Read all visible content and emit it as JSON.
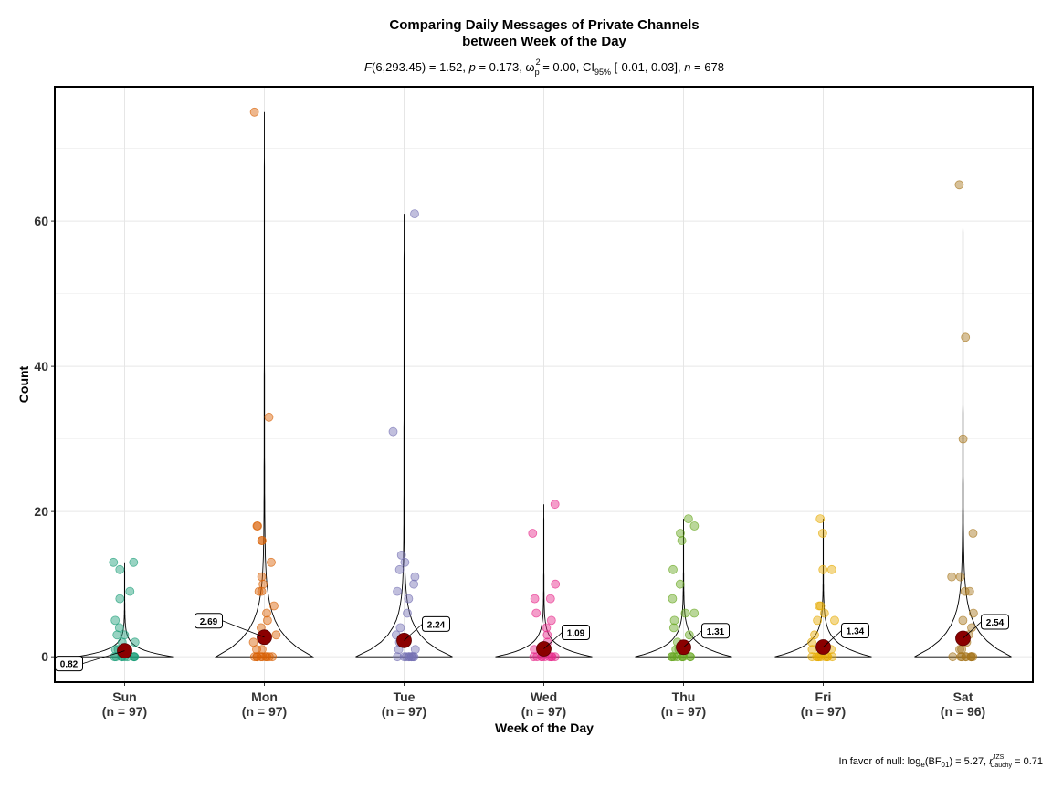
{
  "chart_data": {
    "type": "violin",
    "title_line1": "Comparing Daily Messages of Private Channels",
    "title_line2": "between Week of the Day",
    "subtitle": {
      "f_sym": "F",
      "f_text": "(6,293.45) = 1.52, ",
      "p_sym": "p",
      "p_text": " = 0.173, ω",
      "omega_sup": "2",
      "omega_sub": "p",
      "omega_text": " = 0.00, CI",
      "ci_sub": "95%",
      "ci_text": " [-0.01, 0.03], ",
      "n_sym": "n",
      "n_text": " = 678"
    },
    "xlabel": "Week of the Day",
    "ylabel": "Count",
    "ylim": [
      -3.5,
      78.5
    ],
    "yticks": [
      0,
      20,
      40,
      60
    ],
    "grid": true,
    "categories": [
      "Sun",
      "Mon",
      "Tue",
      "Wed",
      "Thu",
      "Fri",
      "Sat"
    ],
    "n_labels": [
      "(n = 97)",
      "(n = 97)",
      "(n = 97)",
      "(n = 97)",
      "(n = 97)",
      "(n = 97)",
      "(n = 96)"
    ],
    "colors": [
      "#1B9E77",
      "#D95F02",
      "#7570B3",
      "#E7298A",
      "#66A61E",
      "#E6AB02",
      "#A6761D"
    ],
    "means": [
      0.82,
      2.69,
      2.24,
      1.09,
      1.31,
      1.34,
      2.54
    ],
    "mean_labels": [
      "0.82",
      "2.69",
      "2.24",
      "1.09",
      "1.31",
      "1.34",
      "2.54"
    ],
    "max_values": [
      13,
      75,
      61,
      21,
      19,
      19,
      65
    ],
    "points": [
      [
        0,
        0,
        0,
        0,
        0,
        0,
        0,
        0,
        0,
        1,
        1,
        2,
        2,
        3,
        3,
        4,
        5,
        9,
        8,
        12,
        13,
        13
      ],
      [
        0,
        0,
        0,
        0,
        0,
        0,
        0,
        0,
        0,
        1,
        1,
        2,
        3,
        4,
        5,
        6,
        7,
        9,
        9,
        10,
        11,
        13,
        16,
        16,
        18,
        18,
        33,
        75
      ],
      [
        0,
        0,
        0,
        0,
        0,
        0,
        0,
        0,
        0,
        1,
        1,
        2,
        3,
        4,
        6,
        8,
        9,
        10,
        11,
        12,
        13,
        14,
        31,
        61
      ],
      [
        0,
        0,
        0,
        0,
        0,
        0,
        0,
        0,
        0,
        1,
        2,
        3,
        4,
        5,
        6,
        8,
        8,
        10,
        17,
        21
      ],
      [
        0,
        0,
        0,
        0,
        0,
        0,
        0,
        0,
        0,
        1,
        1,
        2,
        3,
        4,
        5,
        6,
        6,
        8,
        10,
        12,
        16,
        17,
        18,
        19
      ],
      [
        0,
        0,
        0,
        0,
        0,
        0,
        0,
        0,
        0,
        1,
        1,
        2,
        3,
        5,
        5,
        6,
        7,
        7,
        12,
        12,
        17,
        19
      ],
      [
        0,
        0,
        0,
        0,
        0,
        0,
        0,
        0,
        0,
        1,
        1,
        2,
        3,
        4,
        5,
        6,
        9,
        9,
        11,
        11,
        17,
        30,
        44,
        65
      ]
    ],
    "caption": {
      "prefix": "In favor of null: log",
      "log_sub": "e",
      "bf_text": "(BF",
      "bf_sub": "01",
      "mid_text": ") = 5.27, ",
      "r_sym": "r",
      "r_sup": "JZS",
      "r_sub": "Cauchy",
      "end_text": " = 0.71"
    }
  }
}
